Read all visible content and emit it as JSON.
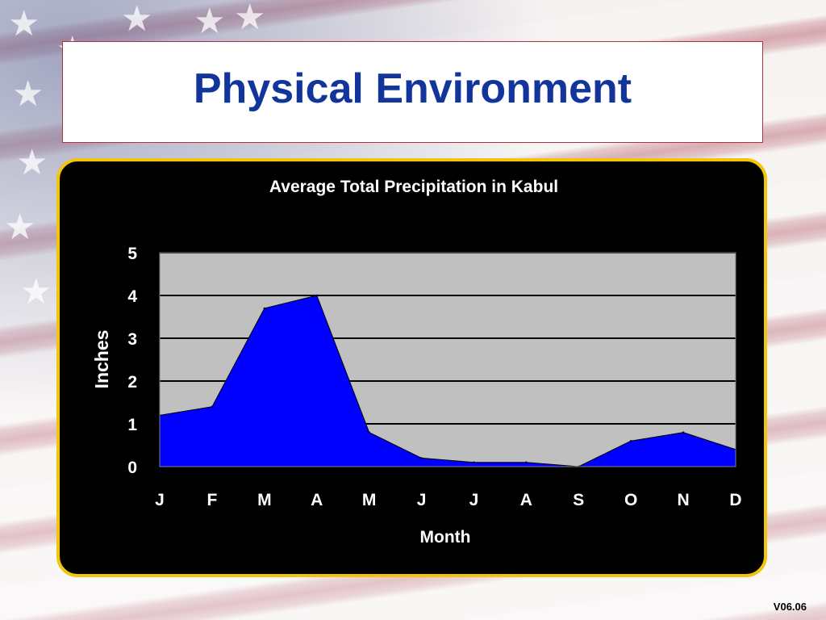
{
  "slide": {
    "title": "Physical Environment",
    "version": "V06.06"
  },
  "colors": {
    "title": "#12359b",
    "panel_border": "#f2c40c",
    "panel_bg": "#000000",
    "plot_bg": "#c0c0c0",
    "area_fill": "#0000ff"
  },
  "chart_data": {
    "type": "area",
    "title": "Average Total Precipitation in Kabul",
    "xlabel": "Month",
    "ylabel": "Inches",
    "categories": [
      "J",
      "F",
      "M",
      "A",
      "M",
      "J",
      "J",
      "A",
      "S",
      "O",
      "N",
      "D"
    ],
    "values": [
      1.2,
      1.4,
      3.7,
      4.0,
      0.8,
      0.2,
      0.1,
      0.1,
      0.0,
      0.6,
      0.8,
      0.4
    ],
    "ylim": [
      0,
      5
    ],
    "yticks": [
      "0",
      "1",
      "2",
      "3",
      "4",
      "5"
    ],
    "grid": true,
    "legend": "none"
  }
}
